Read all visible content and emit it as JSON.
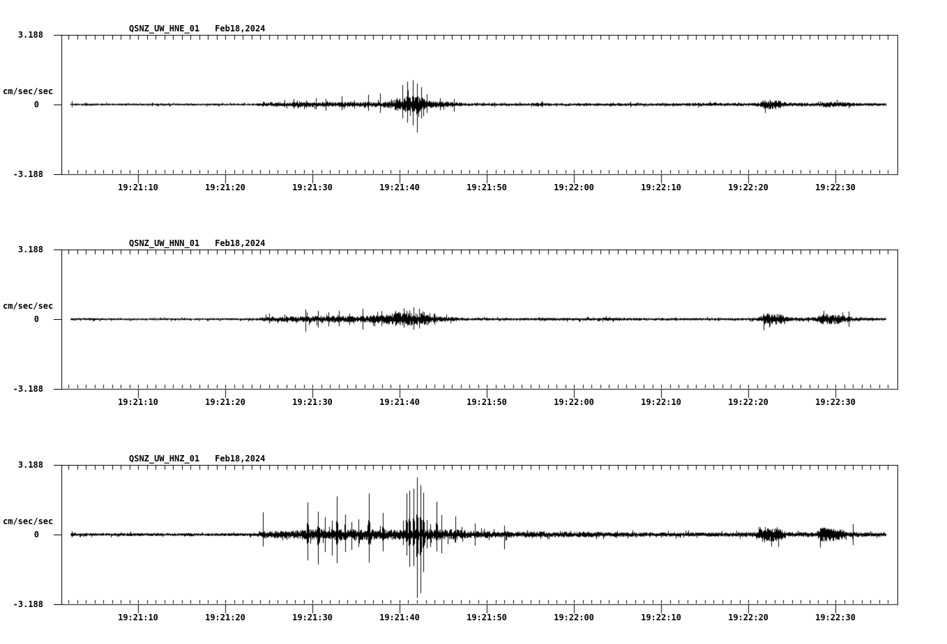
{
  "page": {
    "background": "#ffffff",
    "trace_color": "#000000"
  },
  "x_axis": {
    "tick_labels": [
      "19:21:10",
      "19:21:20",
      "19:21:30",
      "19:21:40",
      "19:21:50",
      "19:22:00",
      "19:22:10",
      "19:22:20",
      "19:22:30"
    ],
    "tick_seconds": [
      10,
      20,
      30,
      40,
      50,
      60,
      70,
      80,
      90
    ],
    "minor_tick_interval_sec": 1
  },
  "plots": [
    {
      "station": "QSNZ_UW_HNE_01",
      "date": "Feb18,2024",
      "y_max_label": "3.188",
      "y_zero_label": "0",
      "y_min_label": "-3.188",
      "y_unit": "cm/sec/sec"
    },
    {
      "station": "QSNZ_UW_HNN_01",
      "date": "Feb18,2024",
      "y_max_label": "3.188",
      "y_zero_label": "0",
      "y_min_label": "-3.188",
      "y_unit": "cm/sec/sec"
    },
    {
      "station": "QSNZ_UW_HNZ_01",
      "date": "Feb18,2024",
      "y_max_label": "3.188",
      "y_zero_label": "0",
      "y_min_label": "-3.188",
      "y_unit": "cm/sec/sec"
    }
  ],
  "chart_data": [
    {
      "type": "line",
      "title": "QSNZ_UW_HNE_01  Feb18,2024",
      "ylabel": "cm/sec/sec",
      "ylim": [
        -3.188,
        3.188
      ],
      "time_window": {
        "start": "19:21:01",
        "end": "19:22:37"
      },
      "t_unit": "seconds after 19:21:00",
      "seed": 11,
      "envelope": [
        [
          2.2,
          0.05
        ],
        [
          23,
          0.05
        ],
        [
          25,
          0.09
        ],
        [
          26,
          0.12
        ],
        [
          38,
          0.12
        ],
        [
          39.3,
          0.2
        ],
        [
          39.8,
          0.35
        ],
        [
          41.5,
          0.38
        ],
        [
          42.8,
          0.3
        ],
        [
          43.5,
          0.16
        ],
        [
          46,
          0.12
        ],
        [
          48,
          0.07
        ],
        [
          55,
          0.06
        ],
        [
          56,
          0.1
        ],
        [
          57.5,
          0.06
        ],
        [
          62,
          0.07
        ],
        [
          70,
          0.06
        ],
        [
          75,
          0.08
        ],
        [
          80,
          0.07
        ],
        [
          81.3,
          0.1
        ],
        [
          81.8,
          0.22
        ],
        [
          83.5,
          0.2
        ],
        [
          84.3,
          0.09
        ],
        [
          88,
          0.08
        ],
        [
          88.8,
          0.14
        ],
        [
          90.5,
          0.13
        ],
        [
          92,
          0.08
        ],
        [
          95.8,
          0.07
        ]
      ],
      "spikes": [
        [
          2.4,
          0.15,
          0.12
        ],
        [
          27.8,
          0.26,
          0.19
        ],
        [
          29.3,
          0.19,
          0.16
        ],
        [
          30.4,
          0.29,
          0.22
        ],
        [
          31.5,
          0.26,
          0.29
        ],
        [
          33.4,
          0.38,
          0.26
        ],
        [
          34.8,
          0.19,
          0.19
        ],
        [
          36.4,
          0.45,
          0.29
        ],
        [
          37.8,
          0.51,
          0.38
        ],
        [
          40.3,
          0.89,
          0.64
        ],
        [
          40.9,
          1.05,
          0.83
        ],
        [
          41.5,
          1.12,
          0.96
        ],
        [
          42.0,
          0.96,
          1.28
        ],
        [
          42.5,
          0.8,
          0.64
        ],
        [
          43.1,
          0.48,
          0.38
        ],
        [
          44.6,
          0.29,
          0.26
        ],
        [
          46.2,
          0.26,
          0.32
        ],
        [
          56.3,
          0.16,
          0.13
        ],
        [
          66.5,
          0.13,
          0.13
        ],
        [
          82.5,
          0.22,
          0.22
        ],
        [
          83.1,
          0.19,
          0.22
        ]
      ]
    },
    {
      "type": "line",
      "title": "QSNZ_UW_HNN_01  Feb18,2024",
      "ylabel": "cm/sec/sec",
      "ylim": [
        -3.188,
        3.188
      ],
      "time_window": {
        "start": "19:21:01",
        "end": "19:22:37"
      },
      "t_unit": "seconds after 19:21:00",
      "seed": 22,
      "envelope": [
        [
          2.2,
          0.05
        ],
        [
          23.5,
          0.05
        ],
        [
          24.5,
          0.12
        ],
        [
          28.5,
          0.13
        ],
        [
          29,
          0.16
        ],
        [
          36,
          0.15
        ],
        [
          38.5,
          0.22
        ],
        [
          39,
          0.3
        ],
        [
          42.5,
          0.3
        ],
        [
          43.5,
          0.15
        ],
        [
          46,
          0.1
        ],
        [
          48,
          0.06
        ],
        [
          55,
          0.06
        ],
        [
          56,
          0.08
        ],
        [
          60,
          0.06
        ],
        [
          64,
          0.08
        ],
        [
          68,
          0.06
        ],
        [
          80,
          0.06
        ],
        [
          81.2,
          0.1
        ],
        [
          81.8,
          0.28
        ],
        [
          83.6,
          0.24
        ],
        [
          84.5,
          0.1
        ],
        [
          87.5,
          0.09
        ],
        [
          88.4,
          0.24
        ],
        [
          90.5,
          0.22
        ],
        [
          92,
          0.12
        ],
        [
          93,
          0.08
        ],
        [
          95.8,
          0.07
        ]
      ],
      "spikes": [
        [
          25.0,
          0.26,
          0.19
        ],
        [
          29.2,
          0.45,
          0.57
        ],
        [
          30.6,
          0.38,
          0.38
        ],
        [
          31.8,
          0.32,
          0.32
        ],
        [
          33.0,
          0.38,
          0.32
        ],
        [
          34.2,
          0.26,
          0.26
        ],
        [
          35.8,
          0.48,
          0.48
        ],
        [
          37.0,
          0.2,
          0.3
        ],
        [
          39.5,
          0.38,
          0.32
        ],
        [
          40.5,
          0.45,
          0.38
        ],
        [
          41.6,
          0.54,
          0.48
        ],
        [
          42.2,
          0.48,
          0.42
        ],
        [
          42.8,
          0.32,
          0.26
        ],
        [
          44.0,
          0.25,
          0.25
        ],
        [
          91.5,
          0.35,
          0.35
        ]
      ]
    },
    {
      "type": "line",
      "title": "QSNZ_UW_HNZ_01  Feb18,2024",
      "ylabel": "cm/sec/sec",
      "ylim": [
        -3.188,
        3.188
      ],
      "time_window": {
        "start": "19:21:01",
        "end": "19:22:37"
      },
      "t_unit": "seconds after 19:21:00",
      "seed": 33,
      "envelope": [
        [
          2.2,
          0.07
        ],
        [
          23,
          0.07
        ],
        [
          24.5,
          0.16
        ],
        [
          28.5,
          0.2
        ],
        [
          29,
          0.25
        ],
        [
          47,
          0.25
        ],
        [
          48,
          0.18
        ],
        [
          53,
          0.15
        ],
        [
          58,
          0.13
        ],
        [
          70,
          0.1
        ],
        [
          80,
          0.1
        ],
        [
          80.9,
          0.15
        ],
        [
          81.5,
          0.38
        ],
        [
          83.4,
          0.34
        ],
        [
          84.4,
          0.12
        ],
        [
          87.6,
          0.11
        ],
        [
          88.3,
          0.34
        ],
        [
          90.3,
          0.3
        ],
        [
          91.5,
          0.12
        ],
        [
          95.8,
          0.1
        ]
      ],
      "spikes": [
        [
          2.4,
          0.16,
          0.13
        ],
        [
          24.3,
          1.02,
          0.54
        ],
        [
          29.4,
          1.47,
          1.18
        ],
        [
          30.6,
          1.05,
          1.37
        ],
        [
          31.4,
          0.8,
          0.8
        ],
        [
          32.2,
          0.64,
          0.96
        ],
        [
          32.8,
          1.75,
          1.31
        ],
        [
          33.8,
          0.92,
          0.8
        ],
        [
          34.5,
          0.57,
          0.7
        ],
        [
          35.3,
          0.7,
          0.57
        ],
        [
          36.5,
          1.88,
          1.28
        ],
        [
          38.1,
          0.99,
          0.77
        ],
        [
          40.4,
          0.64,
          0.48
        ],
        [
          40.8,
          1.88,
          0.96
        ],
        [
          41.1,
          2.01,
          1.47
        ],
        [
          41.6,
          2.1,
          1.44
        ],
        [
          42.0,
          2.61,
          2.9
        ],
        [
          42.4,
          2.26,
          2.68
        ],
        [
          42.7,
          1.91,
          1.72
        ],
        [
          43.1,
          0.67,
          0.64
        ],
        [
          43.5,
          0.48,
          0.57
        ],
        [
          44.2,
          1.5,
          0.77
        ],
        [
          44.8,
          0.89,
          0.86
        ],
        [
          46.4,
          0.83,
          0.38
        ],
        [
          48.6,
          0.51,
          0.51
        ],
        [
          52.0,
          0.41,
          0.67
        ],
        [
          92.0,
          0.48,
          0.48
        ]
      ]
    }
  ]
}
